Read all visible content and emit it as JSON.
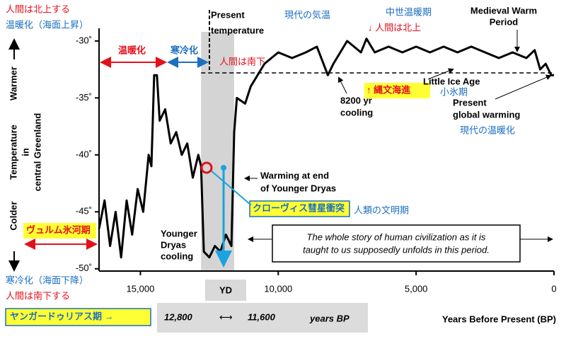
{
  "chart_data": {
    "type": "line",
    "x_label": "Years Before Present (BP)",
    "y_label": [
      "Warmer",
      "Temperature",
      "in",
      "central Greenland",
      "Colder"
    ],
    "color": "#000000",
    "x": [
      16500,
      16300,
      16100,
      15900,
      15700,
      15500,
      15300,
      15100,
      14900,
      14700,
      14600,
      14500,
      14400,
      14300,
      14100,
      13900,
      13700,
      13500,
      13300,
      13100,
      12900,
      12800,
      12700,
      12500,
      12300,
      12100,
      11900,
      11700,
      11600,
      11500,
      11200,
      11000,
      10500,
      10000,
      9500,
      9000,
      8600,
      8200,
      8000,
      7500,
      7000,
      6800,
      6500,
      6000,
      5500,
      5000,
      4500,
      4000,
      3500,
      3000,
      2500,
      2000,
      1500,
      1000,
      700,
      500,
      300,
      100,
      0
    ],
    "values": [
      -46.5,
      -44,
      -48,
      -45,
      -49,
      -44,
      -47,
      -43,
      -45,
      -40,
      -41,
      -33,
      -33,
      -37,
      -36,
      -39,
      -38,
      -40,
      -39,
      -42,
      -40,
      -41,
      -48.5,
      -49,
      -48,
      -48.5,
      -47,
      -48,
      -38,
      -35,
      -35.5,
      -34,
      -32,
      -31,
      -31.5,
      -31,
      -30.5,
      -33,
      -32,
      -30,
      -31,
      -29.8,
      -31,
      -30.5,
      -31,
      -30.5,
      -31,
      -30.5,
      -31,
      -30.5,
      -31,
      -31.5,
      -31,
      -31.5,
      -30.8,
      -32.5,
      -32,
      -33,
      -33
    ],
    "xlim": [
      16500,
      0
    ],
    "ylim": [
      -50.2,
      -29.2
    ],
    "xticks": [
      {
        "value": 15000,
        "label": "15,000"
      },
      {
        "value": 10000,
        "label": "10,000"
      },
      {
        "value": 5000,
        "label": "5,000"
      },
      0
    ],
    "yticks": [
      {
        "value": -30,
        "label": "-30˚"
      },
      {
        "value": -35,
        "label": "-35˚"
      },
      {
        "value": -40,
        "label": "-40˚"
      },
      {
        "value": -45,
        "label": "-45˚"
      },
      {
        "value": -50,
        "label": "-50˚"
      }
    ],
    "present_temperature": -32.8,
    "yd_span": [
      12800,
      11600
    ],
    "annotations": [
      "人間は北上する",
      "温暖化（海面上昇）",
      "Present",
      "temperature",
      "現代の気温",
      "中世温暖期",
      "↓ 人間は北上",
      "Medieval Warm",
      "Period",
      "温暖化",
      "寒冷化",
      "人間は南下",
      "Little Ice Age",
      "小氷期",
      "↑ 縄文海進",
      "8200 yr",
      "cooling",
      "Present",
      "global warming",
      "現代の温暖化",
      "Warming at end",
      "of Younger Dryas",
      "クローヴィス彗星衝突",
      "人類の文明期",
      "ヴュルム氷河期",
      "Younger",
      "Dryas",
      "cooling",
      "The whole story of human civilization as it is",
      "taught to us supposedly unfolds in this period.",
      "寒冷化（海面下降）",
      "人間は南下する",
      "YD",
      "ヤンガードゥリアス期 →",
      "12,800",
      "⟷",
      "11,600",
      "years BP"
    ]
  }
}
